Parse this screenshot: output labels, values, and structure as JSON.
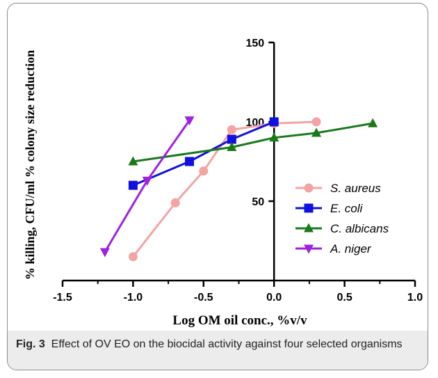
{
  "chart_data": {
    "type": "line",
    "xlabel": "Log OM oil conc., %v/v",
    "ylabel": "% killing, CFU/ml % colony size reduction",
    "xlim": [
      -1.5,
      1.0
    ],
    "ylim": [
      0,
      150
    ],
    "x_ticks": [
      "-1.5",
      "-1.0",
      "-0.5",
      "0.0",
      "0.5",
      "1.0"
    ],
    "y_ticks": [
      "50",
      "100",
      "150"
    ],
    "legend_position": "right",
    "grid": false,
    "series": [
      {
        "name": "S. aureus",
        "color": "#f4a3a3",
        "marker": "circle",
        "x": [
          -1.0,
          -0.7,
          -0.5,
          -0.3,
          0.0,
          0.3
        ],
        "y": [
          15,
          49,
          69,
          95,
          99,
          100
        ]
      },
      {
        "name": "E. coli",
        "color": "#1010e0",
        "marker": "square",
        "x": [
          -1.0,
          -0.6,
          -0.3,
          0.0
        ],
        "y": [
          60,
          75,
          89,
          100
        ]
      },
      {
        "name": "C. albicans",
        "color": "#1a7a1a",
        "marker": "triangle-up",
        "x": [
          -1.0,
          -0.3,
          0.0,
          0.3,
          0.7
        ],
        "y": [
          75,
          84,
          90,
          93,
          99
        ]
      },
      {
        "name": "A. niger",
        "color": "#a020e0",
        "marker": "triangle-down",
        "x": [
          -1.2,
          -0.9,
          -0.6
        ],
        "y": [
          18,
          63,
          101
        ]
      }
    ]
  },
  "caption": {
    "label": "Fig. 3",
    "text": "Effect of OV EO on the biocidal activity against four selected organisms"
  }
}
